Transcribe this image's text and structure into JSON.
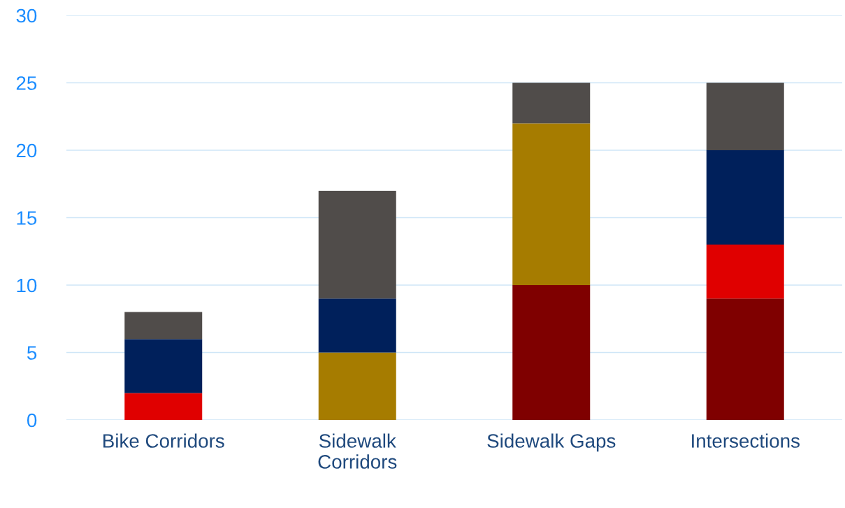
{
  "chart_data": {
    "type": "bar",
    "stacked": true,
    "categories": [
      "Bike Corridors",
      "Sidewalk\nCorridors",
      "Sidewalk Gaps",
      "Intersections"
    ],
    "series": [
      {
        "color": "#7f0000",
        "values": [
          null,
          null,
          10,
          9
        ]
      },
      {
        "color": "#e00000",
        "values": [
          2,
          null,
          null,
          4
        ]
      },
      {
        "color": "#a67c00",
        "values": [
          null,
          5,
          12,
          null
        ]
      },
      {
        "color": "#00205b",
        "values": [
          4,
          4,
          null,
          7
        ]
      },
      {
        "color": "#504c4a",
        "values": [
          2,
          8,
          3,
          5
        ]
      }
    ],
    "ylim": [
      0,
      30
    ],
    "yticks": [
      0,
      5,
      10,
      15,
      20,
      25,
      30
    ],
    "grid": "y",
    "legend": false
  }
}
